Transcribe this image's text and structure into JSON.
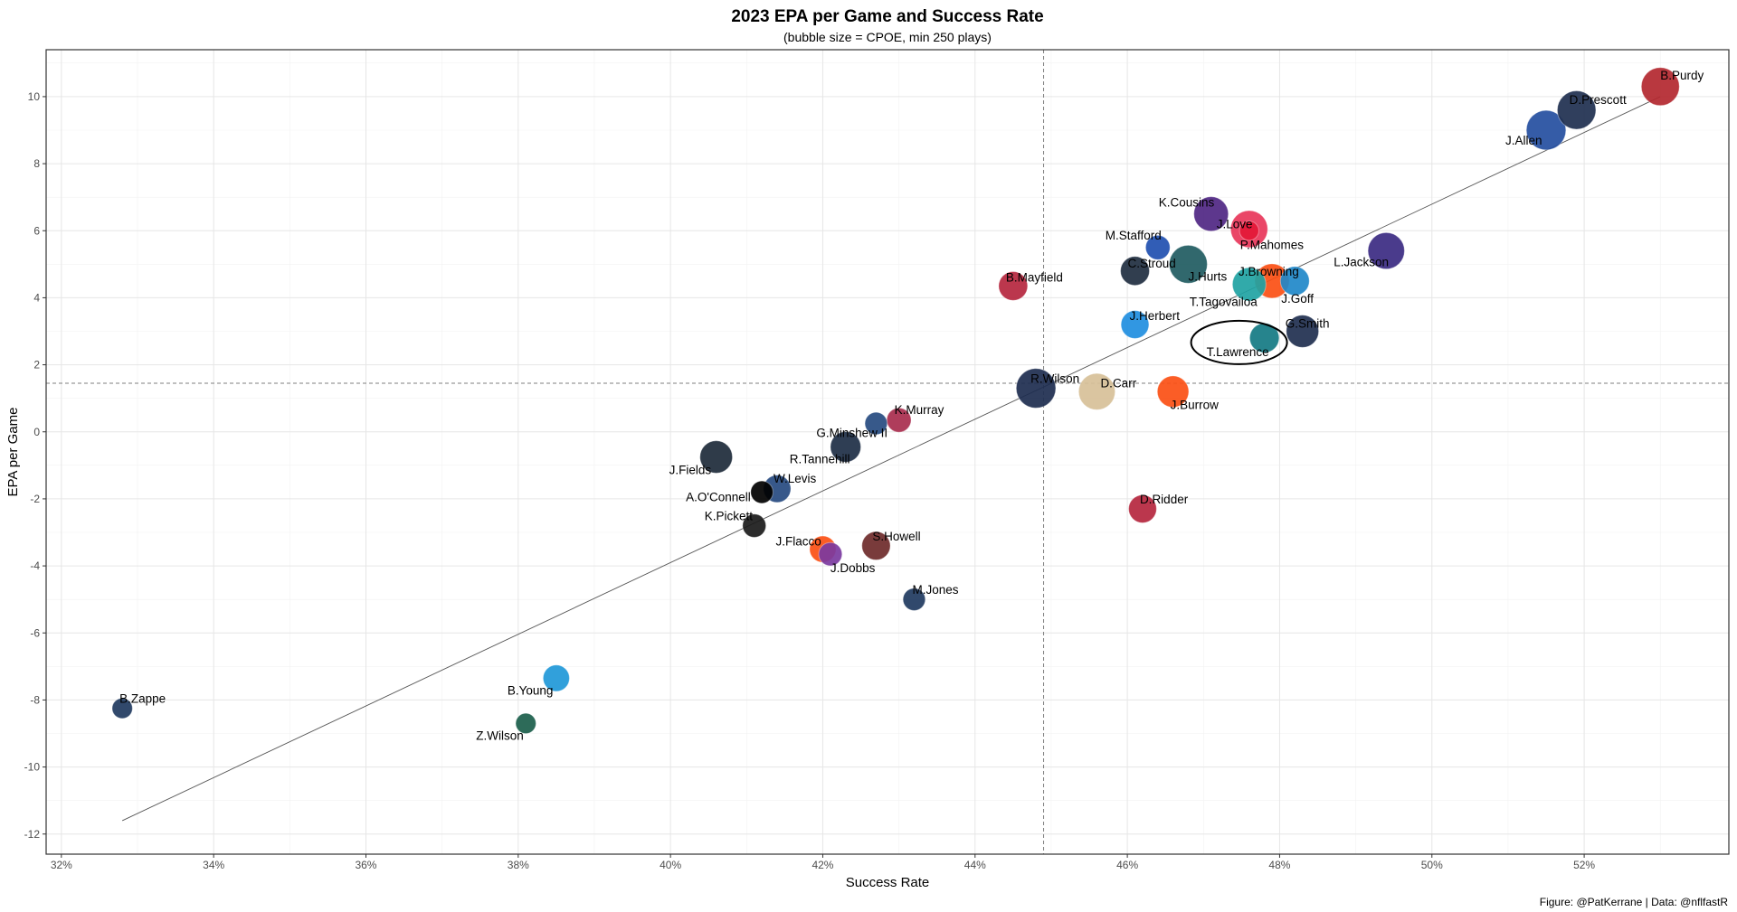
{
  "chart_data": {
    "type": "scatter",
    "title": "2023 EPA per Game and Success Rate",
    "subtitle": "(bubble size = CPOE, min 250 plays)",
    "xlabel": "Success Rate",
    "ylabel": "EPA per Game",
    "caption": "Figure: @PatKerrane | Data: @nflfastR",
    "xlim": [
      31.8,
      53.9
    ],
    "ylim": [
      -12.6,
      11.4
    ],
    "x_ticks": [
      32,
      34,
      36,
      38,
      40,
      42,
      44,
      46,
      48,
      50,
      52
    ],
    "x_tick_labels": [
      "32%",
      "34%",
      "36%",
      "38%",
      "40%",
      "42%",
      "44%",
      "46%",
      "48%",
      "50%",
      "52%"
    ],
    "y_ticks": [
      -12,
      -10,
      -8,
      -6,
      -4,
      -2,
      0,
      2,
      4,
      6,
      8,
      10
    ],
    "y_tick_labels": [
      "-12",
      "-10",
      "-8",
      "-6",
      "-4",
      "-2",
      "0",
      "2",
      "4",
      "6",
      "8",
      "10"
    ],
    "grid": true,
    "reference_lines": {
      "vertical_x": 44.9,
      "horizontal_y": 1.45,
      "style": "dashed"
    },
    "trend_line": {
      "x": [
        32.8,
        53.0
      ],
      "y": [
        -11.6,
        10.0
      ]
    },
    "highlight": {
      "name": "T.Lawrence",
      "shape": "ellipse"
    },
    "points": [
      {
        "name": "B.Purdy",
        "x": 53.0,
        "y": 10.3,
        "size": 7.5,
        "color": "#b3272f"
      },
      {
        "name": "D.Prescott",
        "x": 51.9,
        "y": 9.6,
        "size": 7.6,
        "color": "#1e2f4f"
      },
      {
        "name": "J.Allen",
        "x": 51.5,
        "y": 9.0,
        "size": 7.8,
        "color": "#244ea0"
      },
      {
        "name": "K.Cousins",
        "x": 47.1,
        "y": 6.5,
        "size": 6.8,
        "color": "#4f2683"
      },
      {
        "name": "J.Love",
        "x": 47.6,
        "y": 6.05,
        "size": 7.3,
        "color": "#e8365a"
      },
      {
        "name": "P.Mahomes",
        "x": 47.6,
        "y": 6.0,
        "size": 3.8,
        "color": "#e31837"
      },
      {
        "name": "M.Stafford",
        "x": 46.4,
        "y": 5.5,
        "size": 4.8,
        "color": "#1f4fb0"
      },
      {
        "name": "L.Jackson",
        "x": 49.4,
        "y": 5.4,
        "size": 7.2,
        "color": "#3b2a82"
      },
      {
        "name": "J.Hurts",
        "x": 46.8,
        "y": 5.0,
        "size": 7.5,
        "color": "#1f5b61"
      },
      {
        "name": "C.Stroud",
        "x": 46.1,
        "y": 4.8,
        "size": 5.7,
        "color": "#1f2e40"
      },
      {
        "name": "J.Browning",
        "x": 47.9,
        "y": 4.5,
        "size": 6.8,
        "color": "#fb4f14"
      },
      {
        "name": "J.Goff",
        "x": 48.2,
        "y": 4.5,
        "size": 5.7,
        "color": "#1f88c9"
      },
      {
        "name": "T.Tagovailoa",
        "x": 47.6,
        "y": 4.4,
        "size": 6.6,
        "color": "#1fa3a3"
      },
      {
        "name": "B.Mayfield",
        "x": 44.5,
        "y": 4.35,
        "size": 5.7,
        "color": "#b5263e"
      },
      {
        "name": "J.Herbert",
        "x": 46.1,
        "y": 3.2,
        "size": 5.5,
        "color": "#1f8ee0"
      },
      {
        "name": "G.Smith",
        "x": 48.3,
        "y": 3.0,
        "size": 6.4,
        "color": "#1f2f4f"
      },
      {
        "name": "T.Lawrence",
        "x": 47.8,
        "y": 2.8,
        "size": 5.8,
        "color": "#147a83"
      },
      {
        "name": "R.Wilson",
        "x": 44.8,
        "y": 1.3,
        "size": 7.8,
        "color": "#1d2d4f"
      },
      {
        "name": "D.Carr",
        "x": 45.6,
        "y": 1.2,
        "size": 7.2,
        "color": "#d7c098"
      },
      {
        "name": "J.Burrow",
        "x": 46.6,
        "y": 1.2,
        "size": 6.2,
        "color": "#fb4f14"
      },
      {
        "name": "K.Murray",
        "x": 43.0,
        "y": 0.35,
        "size": 4.8,
        "color": "#a82d4d"
      },
      {
        "name": "G.Minshew II",
        "x": 42.7,
        "y": 0.25,
        "size": 4.4,
        "color": "#264b80"
      },
      {
        "name": "R.Tannehill",
        "x": 42.3,
        "y": -0.45,
        "size": 6.0,
        "color": "#1d2e45"
      },
      {
        "name": "J.Fields",
        "x": 40.6,
        "y": -0.75,
        "size": 6.4,
        "color": "#1d2a3a"
      },
      {
        "name": "W.Levis",
        "x": 41.4,
        "y": -1.7,
        "size": 5.4,
        "color": "#264a80"
      },
      {
        "name": "A.O'Connell",
        "x": 41.2,
        "y": -1.8,
        "size": 4.4,
        "color": "#000000"
      },
      {
        "name": "K.Pickett",
        "x": 41.1,
        "y": -2.8,
        "size": 4.6,
        "color": "#1a1a1a"
      },
      {
        "name": "D.Ridder",
        "x": 46.2,
        "y": -2.3,
        "size": 5.5,
        "color": "#b5263e"
      },
      {
        "name": "J.Flacco",
        "x": 42.0,
        "y": -3.5,
        "size": 5.2,
        "color": "#fb4f14"
      },
      {
        "name": "S.Howell",
        "x": 42.7,
        "y": -3.4,
        "size": 5.6,
        "color": "#6e2a2a"
      },
      {
        "name": "J.Dobbs",
        "x": 42.1,
        "y": -3.65,
        "size": 4.6,
        "color": "#7b3aa0"
      },
      {
        "name": "M.Jones",
        "x": 43.2,
        "y": -5.0,
        "size": 4.4,
        "color": "#1f3a5f"
      },
      {
        "name": "B.Young",
        "x": 38.5,
        "y": -7.35,
        "size": 5.2,
        "color": "#1f98d8"
      },
      {
        "name": "B.Zappe",
        "x": 32.8,
        "y": -8.25,
        "size": 4.0,
        "color": "#1f3a5f"
      },
      {
        "name": "Z.Wilson",
        "x": 38.1,
        "y": -8.7,
        "size": 4.0,
        "color": "#1b5e4b"
      }
    ]
  }
}
